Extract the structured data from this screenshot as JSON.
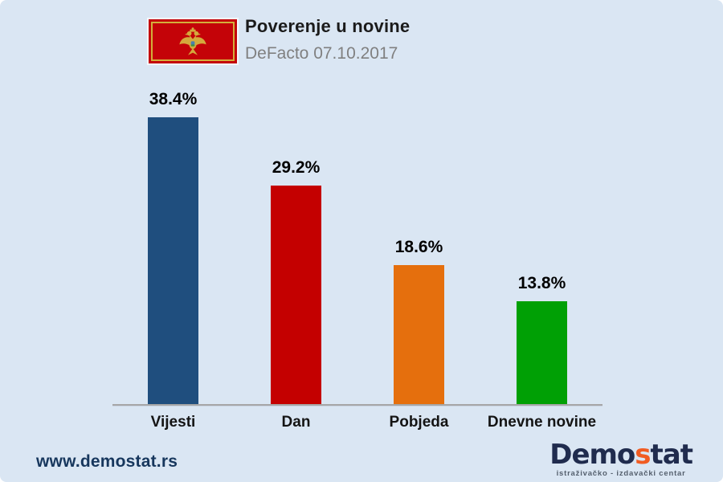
{
  "header": {
    "title": "Poverenje u novine",
    "subtitle": "DeFacto 07.10.2017",
    "flag_name": "montenegro-flag"
  },
  "chart_data": {
    "type": "bar",
    "title": "Poverenje u novine",
    "subtitle": "DeFacto 07.10.2017",
    "categories": [
      "Vijesti",
      "Dan",
      "Pobjeda",
      "Dnevne novine"
    ],
    "values": [
      38.4,
      29.2,
      18.6,
      13.8
    ],
    "value_labels": [
      "38.4%",
      "29.2%",
      "18.6%",
      "13.8%"
    ],
    "bar_colors": [
      "#1F4E7E",
      "#C40000",
      "#E56F0D",
      "#00A005"
    ],
    "xlabel": "",
    "ylabel": "",
    "ylim": [
      0,
      40
    ],
    "grid": false,
    "legend": false,
    "background_color": "#DAE6F3",
    "axis_color": "#A6A6A6"
  },
  "footer": {
    "website": "www.demostat.rs",
    "logo": {
      "part1": "Demo",
      "accent": "s",
      "part2": "tat",
      "tagline": "istraživačko - izdavački centar",
      "navy": "#202C4E",
      "orange": "#F15C22"
    }
  }
}
